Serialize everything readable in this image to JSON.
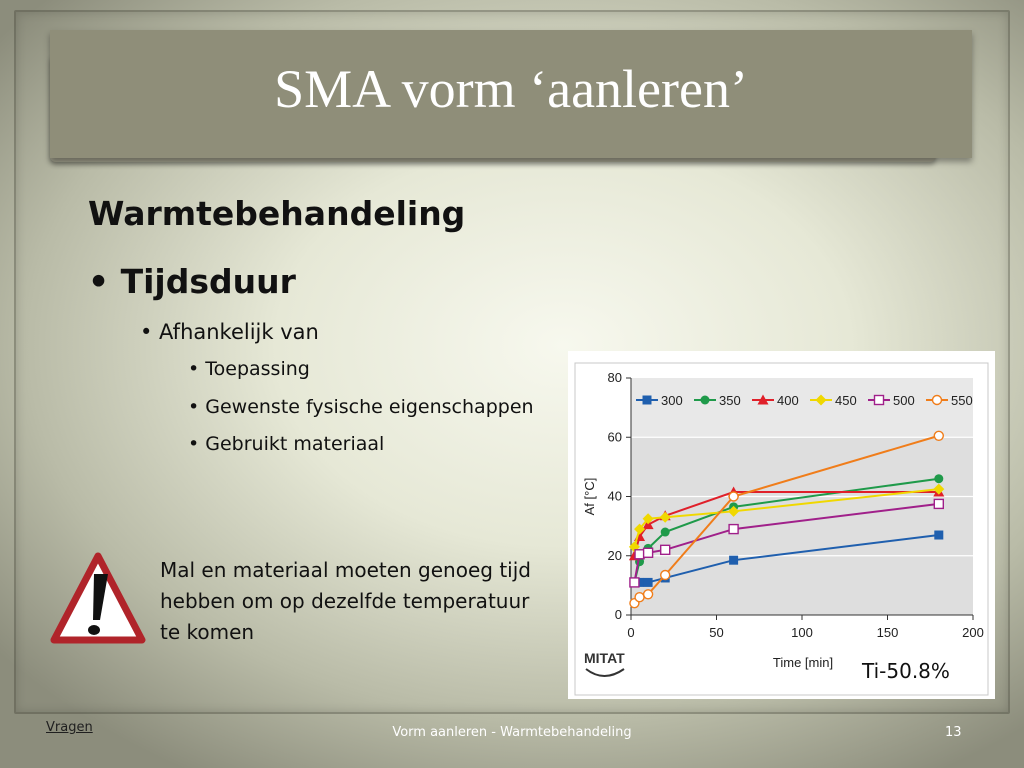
{
  "slide": {
    "title": "SMA vorm ‘aanleren’",
    "heading": "Warmtebehandeling",
    "bullet_main": "• Tijdsduur",
    "bullet_sub": "• Afhankelijk van",
    "bullets_level3": [
      "• Toepassing",
      "• Gewenste fysische eigenschappen",
      "• Gebruikt materiaal"
    ],
    "warning_text": "Mal en materiaal moeten genoeg tijd hebben om op dezelfde temperatuur te komen",
    "warning_icon": "warning-triangle-icon"
  },
  "footer": {
    "link": "Vragen",
    "center": "Vorm aanleren - Warmtebehandeling",
    "page": "13"
  },
  "chart_annotation": "Ti-50.8%",
  "logo_text": "MITAT",
  "chart_data": {
    "type": "line",
    "title": "",
    "xlabel": "Time [min]",
    "ylabel": "Af [°C]",
    "xlim": [
      0,
      200
    ],
    "ylim": [
      0,
      80
    ],
    "xticks": [
      "0",
      "50",
      "100",
      "150",
      "200"
    ],
    "yticks": [
      "0",
      "20",
      "40",
      "60",
      "80"
    ],
    "legend": "top",
    "series": [
      {
        "name": "300",
        "color": "#1f5fae",
        "marker": "square-filled",
        "x": [
          2,
          5,
          10,
          20,
          60,
          180
        ],
        "y": [
          11,
          11,
          11,
          12.5,
          18.5,
          27
        ]
      },
      {
        "name": "350",
        "color": "#1f9a4a",
        "marker": "circle-filled",
        "x": [
          2,
          5,
          10,
          20,
          60,
          180
        ],
        "y": [
          11,
          18,
          22.5,
          28,
          36.5,
          46
        ]
      },
      {
        "name": "400",
        "color": "#e0202a",
        "marker": "triangle-filled",
        "x": [
          2,
          5,
          10,
          20,
          60,
          180
        ],
        "y": [
          20,
          26.5,
          30.5,
          33.5,
          41.5,
          41.5
        ]
      },
      {
        "name": "450",
        "color": "#f0d800",
        "marker": "diamond-filled",
        "x": [
          2,
          5,
          10,
          20,
          60,
          180
        ],
        "y": [
          23,
          29,
          32.5,
          33,
          35,
          42.5
        ]
      },
      {
        "name": "500",
        "color": "#a0208a",
        "marker": "square-open",
        "x": [
          2,
          5,
          10,
          20,
          60,
          180
        ],
        "y": [
          11,
          20.5,
          21,
          22,
          29,
          37.5
        ]
      },
      {
        "name": "550",
        "color": "#f07d1a",
        "marker": "circle-open",
        "x": [
          2,
          5,
          10,
          20,
          60,
          180
        ],
        "y": [
          4,
          6,
          7,
          13.5,
          40,
          60.5
        ]
      }
    ]
  }
}
